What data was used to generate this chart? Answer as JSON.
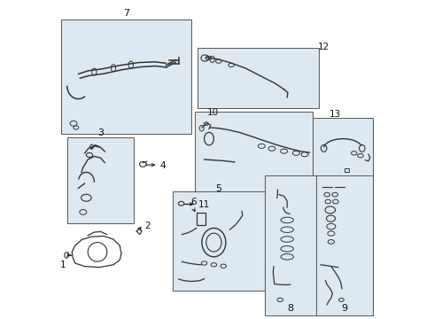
{
  "fig_bg": "#ffffff",
  "box_fill": "#dde8f0",
  "box_edge": "#555555",
  "line_col": "#333333",
  "text_col": "#111111",
  "outer_bg": "#ffffff",
  "boxes": {
    "7": [
      0.01,
      0.58,
      0.41,
      0.36
    ],
    "3": [
      0.03,
      0.3,
      0.21,
      0.27
    ],
    "10": [
      0.43,
      0.38,
      0.37,
      0.27
    ],
    "12": [
      0.43,
      0.66,
      0.37,
      0.18
    ],
    "13": [
      0.8,
      0.44,
      0.19,
      0.18
    ],
    "5": [
      0.36,
      0.09,
      0.29,
      0.3
    ],
    "8": [
      0.65,
      0.01,
      0.15,
      0.43
    ],
    "9": [
      0.81,
      0.01,
      0.18,
      0.43
    ]
  }
}
